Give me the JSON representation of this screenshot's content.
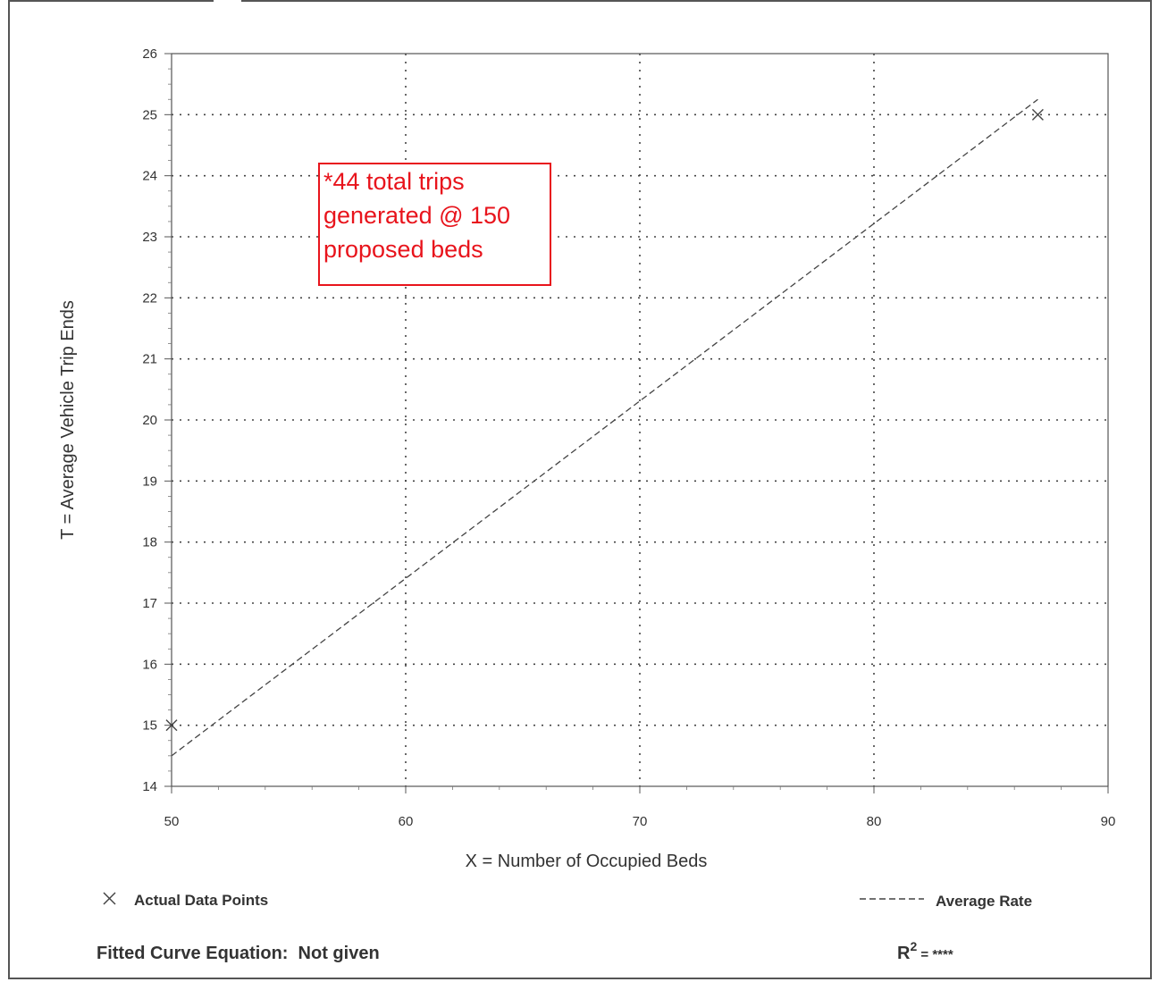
{
  "chart_data": {
    "type": "scatter",
    "title": "",
    "xlabel": "X = Number of Occupied Beds",
    "ylabel": "T = Average Vehicle Trip Ends",
    "xlim": [
      50,
      90
    ],
    "ylim": [
      14,
      26
    ],
    "x_ticks": [
      "50",
      "60",
      "70",
      "80",
      "90"
    ],
    "y_ticks": [
      "14",
      "15",
      "16",
      "17",
      "18",
      "19",
      "20",
      "21",
      "22",
      "23",
      "24",
      "25",
      "26"
    ],
    "grid": true,
    "series": [
      {
        "name": "Actual Data Points",
        "kind": "points",
        "marker": "x",
        "points": [
          {
            "x": 50,
            "y": 15
          },
          {
            "x": 87,
            "y": 25
          }
        ]
      },
      {
        "name": "Average Rate",
        "kind": "line",
        "style": "dashed",
        "points": [
          {
            "x": 50,
            "y": 14.5
          },
          {
            "x": 87,
            "y": 25.25
          }
        ]
      }
    ],
    "legend": {
      "position": "bottom",
      "points_label": "Actual Data Points",
      "line_label": "Average Rate"
    },
    "annotation": {
      "lines": [
        "*44 total trips",
        "generated @ 150",
        "proposed beds"
      ],
      "color": "#e8141c"
    },
    "footer": {
      "equation": "Fitted Curve Equation:  Not given",
      "r2_prefix": "R",
      "r2_sup": "2",
      "r2_suffix": " = ****"
    }
  }
}
